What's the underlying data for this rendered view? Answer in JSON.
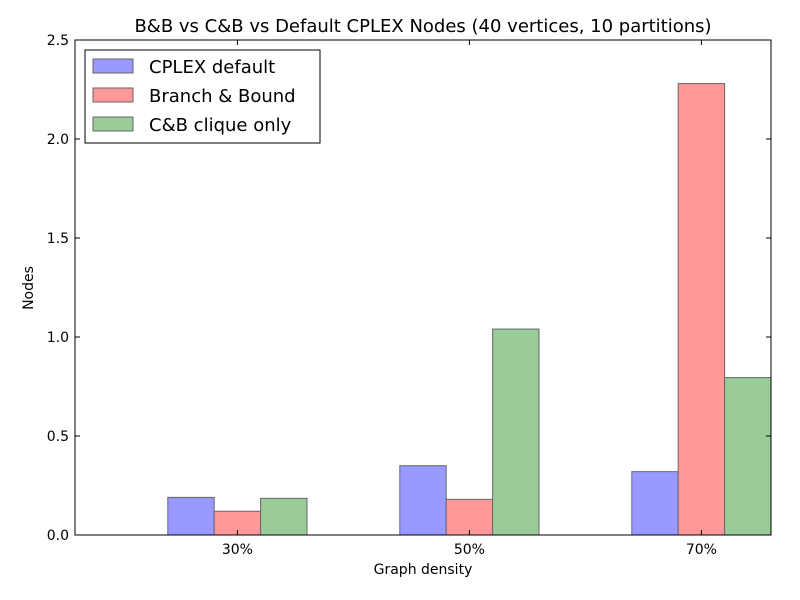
{
  "chart_data": {
    "type": "bar",
    "title": "B&B vs C&B vs Default CPLEX Nodes (40 vertices, 10 partitions)",
    "xlabel": "Graph density",
    "ylabel": "Nodes",
    "categories": [
      "30%",
      "50%",
      "70%"
    ],
    "ylim": [
      0,
      2.5
    ],
    "yticks": [
      "0.0",
      "0.5",
      "1.0",
      "1.5",
      "2.0",
      "2.5"
    ],
    "grid": false,
    "legend_position": "top-left",
    "series": [
      {
        "name": "CPLEX default",
        "color": "#9999ff",
        "values": [
          0.19,
          0.35,
          0.32
        ]
      },
      {
        "name": "Branch & Bound",
        "color": "#ff9999",
        "values": [
          0.12,
          0.18,
          2.28
        ]
      },
      {
        "name": "C&B clique only",
        "color": "#99cc99",
        "values": [
          0.185,
          1.04,
          0.795
        ]
      }
    ]
  }
}
